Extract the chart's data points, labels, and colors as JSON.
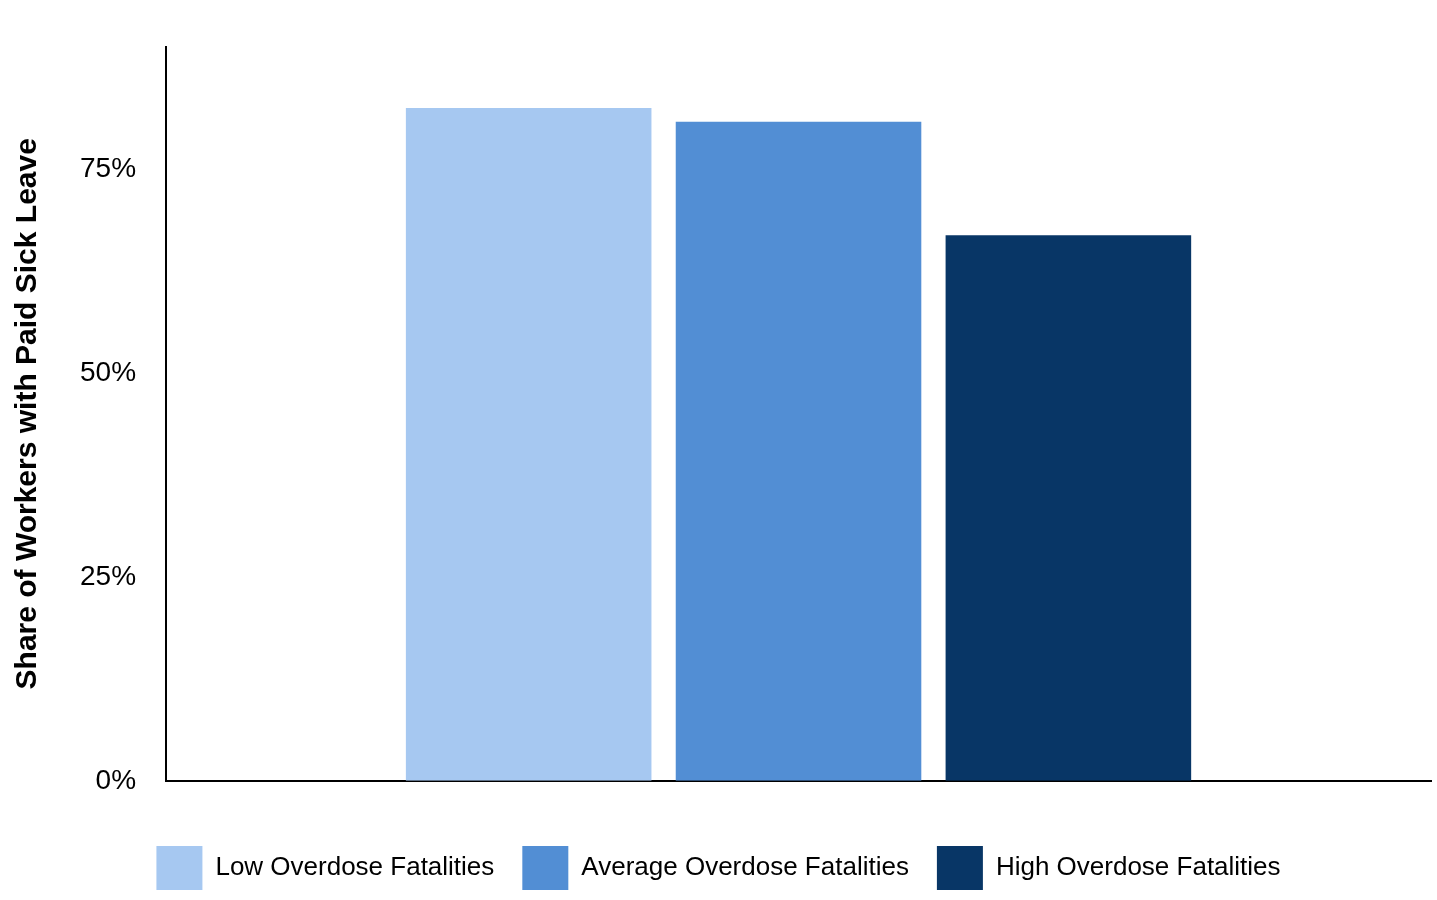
{
  "chart_data": {
    "type": "bar",
    "ylabel": "Share of Workers with Paid Sick Leave",
    "categories": [
      null
    ],
    "series": [
      {
        "name": "Low Overdose Fatalities",
        "color": "#a6c8f1",
        "values": [
          82.5
        ]
      },
      {
        "name": "Average Overdose Fatalities",
        "color": "#528ed4",
        "values": [
          80.8
        ]
      },
      {
        "name": "High Overdose Fatalities",
        "color": "#083666",
        "values": [
          66.9
        ]
      }
    ],
    "ylim": [
      0,
      90
    ],
    "yticks": [
      {
        "value": 0,
        "label": "0%"
      },
      {
        "value": 25,
        "label": "25%"
      },
      {
        "value": 50,
        "label": "50%"
      },
      {
        "value": 75,
        "label": "75%"
      }
    ],
    "grid": false,
    "legend": "bottom"
  }
}
